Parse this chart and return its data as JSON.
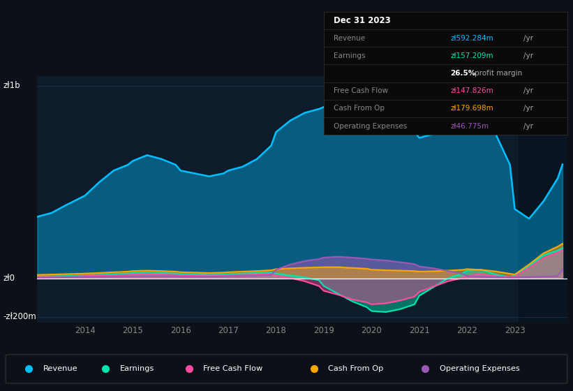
{
  "bg_color": "#0d1117",
  "plot_bg_color": "#0d1b2a",
  "grid_color": "#1e3050",
  "years": [
    2013.0,
    2013.3,
    2013.6,
    2014.0,
    2014.3,
    2014.6,
    2014.9,
    2015.0,
    2015.3,
    2015.6,
    2015.9,
    2016.0,
    2016.3,
    2016.6,
    2016.9,
    2017.0,
    2017.3,
    2017.6,
    2017.9,
    2018.0,
    2018.3,
    2018.6,
    2018.9,
    2019.0,
    2019.3,
    2019.6,
    2019.9,
    2020.0,
    2020.3,
    2020.6,
    2020.9,
    2021.0,
    2021.3,
    2021.6,
    2021.9,
    2022.0,
    2022.3,
    2022.6,
    2022.9,
    2023.0,
    2023.3,
    2023.6,
    2023.9,
    2024.0
  ],
  "revenue": [
    320,
    340,
    380,
    430,
    500,
    560,
    590,
    610,
    640,
    620,
    590,
    560,
    545,
    530,
    545,
    560,
    580,
    620,
    690,
    760,
    820,
    860,
    880,
    890,
    900,
    890,
    870,
    840,
    820,
    790,
    760,
    730,
    750,
    780,
    820,
    870,
    840,
    750,
    590,
    360,
    310,
    400,
    520,
    592
  ],
  "earnings": [
    8,
    10,
    12,
    15,
    18,
    22,
    25,
    28,
    30,
    28,
    25,
    22,
    20,
    18,
    20,
    22,
    25,
    28,
    30,
    25,
    15,
    5,
    -10,
    -40,
    -80,
    -120,
    -150,
    -170,
    -175,
    -160,
    -135,
    -90,
    -45,
    0,
    25,
    40,
    45,
    20,
    5,
    15,
    65,
    120,
    145,
    157
  ],
  "free_cash_flow": [
    4,
    6,
    8,
    12,
    14,
    16,
    18,
    20,
    22,
    20,
    18,
    16,
    14,
    12,
    14,
    16,
    18,
    20,
    22,
    15,
    2,
    -15,
    -40,
    -65,
    -85,
    -110,
    -125,
    -135,
    -130,
    -115,
    -95,
    -70,
    -42,
    -15,
    2,
    15,
    22,
    12,
    4,
    10,
    55,
    105,
    135,
    148
  ],
  "cash_from_op": [
    18,
    20,
    22,
    25,
    28,
    32,
    35,
    38,
    40,
    38,
    35,
    32,
    30,
    28,
    30,
    32,
    35,
    38,
    42,
    48,
    52,
    55,
    57,
    58,
    58,
    54,
    50,
    45,
    42,
    40,
    38,
    35,
    37,
    40,
    44,
    48,
    44,
    36,
    24,
    20,
    72,
    130,
    165,
    180
  ],
  "operating_expenses": [
    4,
    5,
    6,
    7,
    8,
    9,
    10,
    10,
    11,
    11,
    10,
    9,
    9,
    9,
    10,
    11,
    12,
    14,
    16,
    45,
    72,
    90,
    100,
    108,
    112,
    108,
    102,
    98,
    93,
    84,
    74,
    62,
    52,
    38,
    24,
    12,
    8,
    6,
    4,
    4,
    7,
    9,
    11,
    47
  ],
  "revenue_color": "#00bfff",
  "earnings_color": "#00e5b0",
  "fcf_color": "#ff4d9e",
  "cashop_color": "#ffa500",
  "opex_color": "#9b59b6",
  "ylim": [
    -230,
    1050
  ],
  "xticks": [
    2014,
    2015,
    2016,
    2017,
    2018,
    2019,
    2020,
    2021,
    2022,
    2023
  ],
  "xmin": 2013.0,
  "xmax": 2024.1,
  "tooltip_title": "Dec 31 2023",
  "tooltip_revenue_label": "Revenue",
  "tooltip_revenue_val": "zł592.284m",
  "tooltip_earnings_label": "Earnings",
  "tooltip_earnings_val": "zł157.209m",
  "tooltip_margin": "26.5% profit margin",
  "tooltip_fcf_label": "Free Cash Flow",
  "tooltip_fcf_val": "zł147.826m",
  "tooltip_cashop_label": "Cash From Op",
  "tooltip_cashop_val": "zł179.698m",
  "tooltip_opex_label": "Operating Expenses",
  "tooltip_opex_val": "zł46.775m",
  "legend_items": [
    {
      "label": "Revenue",
      "color": "#00bfff"
    },
    {
      "label": "Earnings",
      "color": "#00e5b0"
    },
    {
      "label": "Free Cash Flow",
      "color": "#ff4d9e"
    },
    {
      "label": "Cash From Op",
      "color": "#ffa500"
    },
    {
      "label": "Operating Expenses",
      "color": "#9b59b6"
    }
  ]
}
